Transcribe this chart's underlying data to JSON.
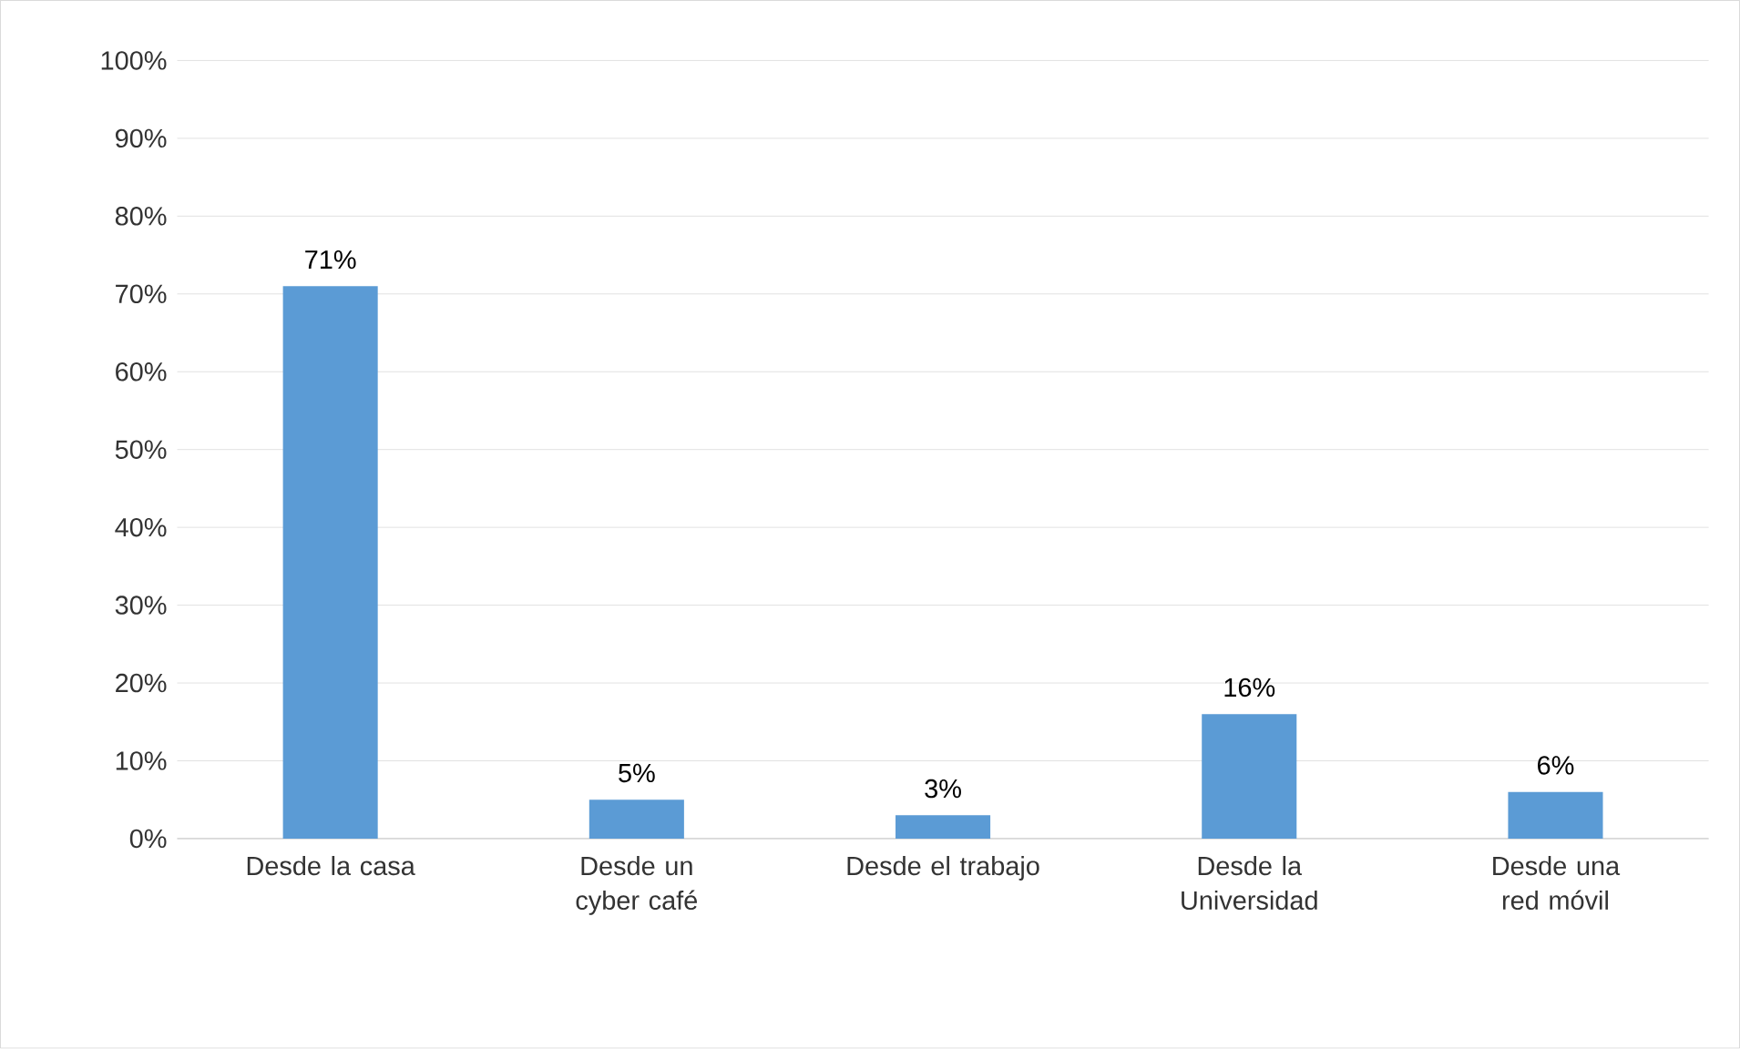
{
  "chart_data": {
    "type": "bar",
    "categories": [
      "Desde la casa",
      "Desde un cyber café",
      "Desde el trabajo",
      "Desde la Universidad",
      "Desde una red móvil"
    ],
    "values": [
      71,
      5,
      3,
      16,
      6
    ],
    "value_labels": [
      "71%",
      "5%",
      "3%",
      "16%",
      "6%"
    ],
    "color": "#5b9bd5",
    "ylim": [
      0,
      100
    ],
    "yticks": [
      {
        "value": 0,
        "label": "0%"
      },
      {
        "value": 10,
        "label": "10%"
      },
      {
        "value": 20,
        "label": "20%"
      },
      {
        "value": 30,
        "label": "30%"
      },
      {
        "value": 40,
        "label": "40%"
      },
      {
        "value": 50,
        "label": "50%"
      },
      {
        "value": 60,
        "label": "60%"
      },
      {
        "value": 70,
        "label": "70%"
      },
      {
        "value": 80,
        "label": "80%"
      },
      {
        "value": 90,
        "label": "90%"
      },
      {
        "value": 100,
        "label": "100%"
      }
    ],
    "grid": "y"
  }
}
